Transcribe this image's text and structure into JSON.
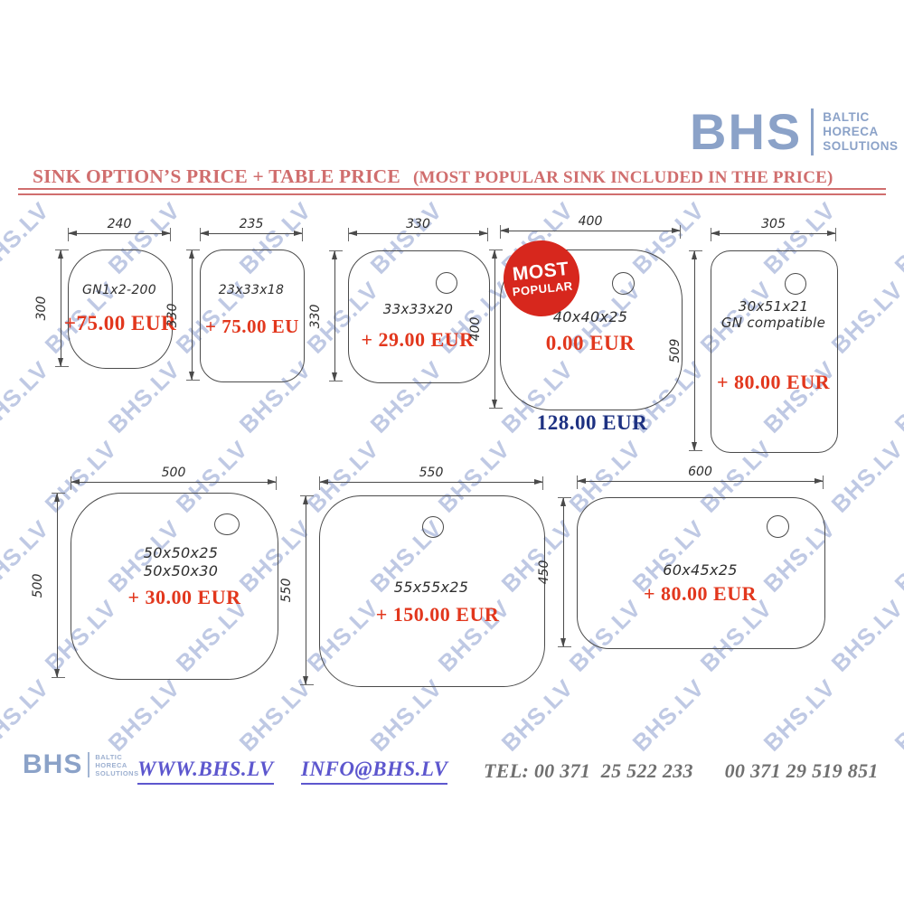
{
  "colors": {
    "price_red": "#e2371d",
    "price_navy": "#1e3282",
    "title_pink": "#d06e6e",
    "logo_blue": "#8ba2c8",
    "watermark_blue": "#8c9ecf",
    "badge_red": "#d7271d",
    "link_purple": "#5d57ce"
  },
  "watermark_text": "BHS.LV",
  "header": {
    "logo_abbr": "BHS",
    "logo_line1": "BALTIC",
    "logo_line2": "HORECA",
    "logo_line3": "SOLUTIONS",
    "title_main": "SINK OPTION’S PRICE + TABLE PRICE",
    "title_note": "(MOST POPULAR SINK INCLUDED IN THE PRICE)"
  },
  "badge": {
    "line1": "MOST",
    "line2": "POPULAR"
  },
  "sinks": [
    {
      "width_label": "240",
      "height_label": "300",
      "model": "GN1x2-200",
      "price": "+75.00 EUR"
    },
    {
      "width_label": "235",
      "height_label": "330",
      "model": "23x33x18",
      "price": "+ 75.00 EU"
    },
    {
      "width_label": "330",
      "height_label": "330",
      "model": "33x33x20",
      "price": "+ 29.00 EUR"
    },
    {
      "width_label": "400",
      "height_label": "400",
      "model": "40x40x25",
      "price": "0.00 EUR",
      "price2": "128.00 EUR"
    },
    {
      "width_label": "305",
      "height_label": "509",
      "model": "30x51x21",
      "model2": "GN compatible",
      "price": "+ 80.00 EUR"
    },
    {
      "width_label": "500",
      "height_label": "500",
      "model": "50x50x25",
      "model2": "50x50x30",
      "price": "+ 30.00 EUR"
    },
    {
      "width_label": "550",
      "height_label": "550",
      "model": "55x55x25",
      "price": "+ 150.00 EUR"
    },
    {
      "width_label": "600",
      "height_label": "450",
      "model": "60x45x25",
      "price": "+ 80.00 EUR"
    }
  ],
  "footer": {
    "logo_abbr": "BHS",
    "logo_line1": "BALTIC",
    "logo_line2": "HORECA",
    "logo_line3": "SOLUTIONS",
    "website": "WWW.BHS.LV",
    "email": "INFO@BHS.LV",
    "tel": "TEL: 00 371  25 522 233      00 371 29 519 851"
  }
}
